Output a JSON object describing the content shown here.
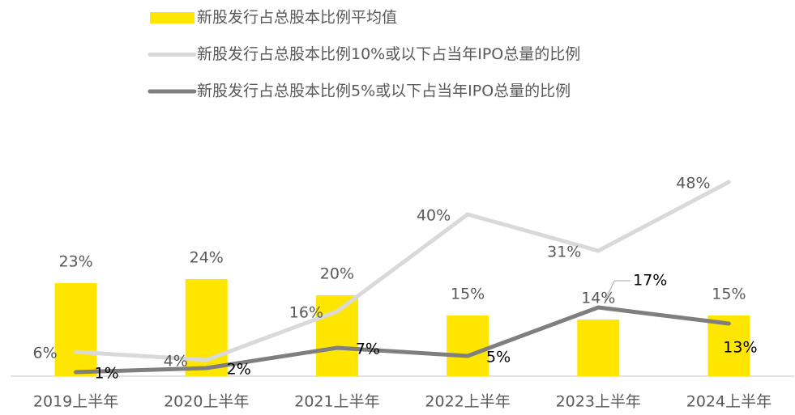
{
  "chart_data": {
    "type": "combo",
    "categories": [
      "2019上半年",
      "2020上半年",
      "2021上半年",
      "2022上半年",
      "2023上半年",
      "2024上半年"
    ],
    "ylim": [
      0,
      50
    ],
    "series": [
      {
        "name": "新股发行占总股本比例平均值",
        "type": "bar",
        "color": "#FFE600",
        "values": [
          23,
          24,
          20,
          15,
          14,
          15
        ],
        "value_labels": [
          "23%",
          "24%",
          "20%",
          "15%",
          "14%",
          "15%"
        ]
      },
      {
        "name": "新股发行占总股本比例10%或以下占当年IPO总量的比例",
        "type": "line",
        "color": "#D9D9D9",
        "values": [
          6,
          4,
          16,
          40,
          31,
          48
        ],
        "value_labels": [
          "6%",
          "4%",
          "16%",
          "40%",
          "31%",
          "48%"
        ]
      },
      {
        "name": "新股发行占总股本比例5%或以下占当年IPO总量的比例",
        "type": "line",
        "color": "#7F7F7F",
        "values": [
          1,
          2,
          7,
          5,
          17,
          13
        ],
        "value_labels": [
          "1%",
          "2%",
          "7%",
          "5%",
          "17%",
          "13%"
        ]
      }
    ]
  }
}
